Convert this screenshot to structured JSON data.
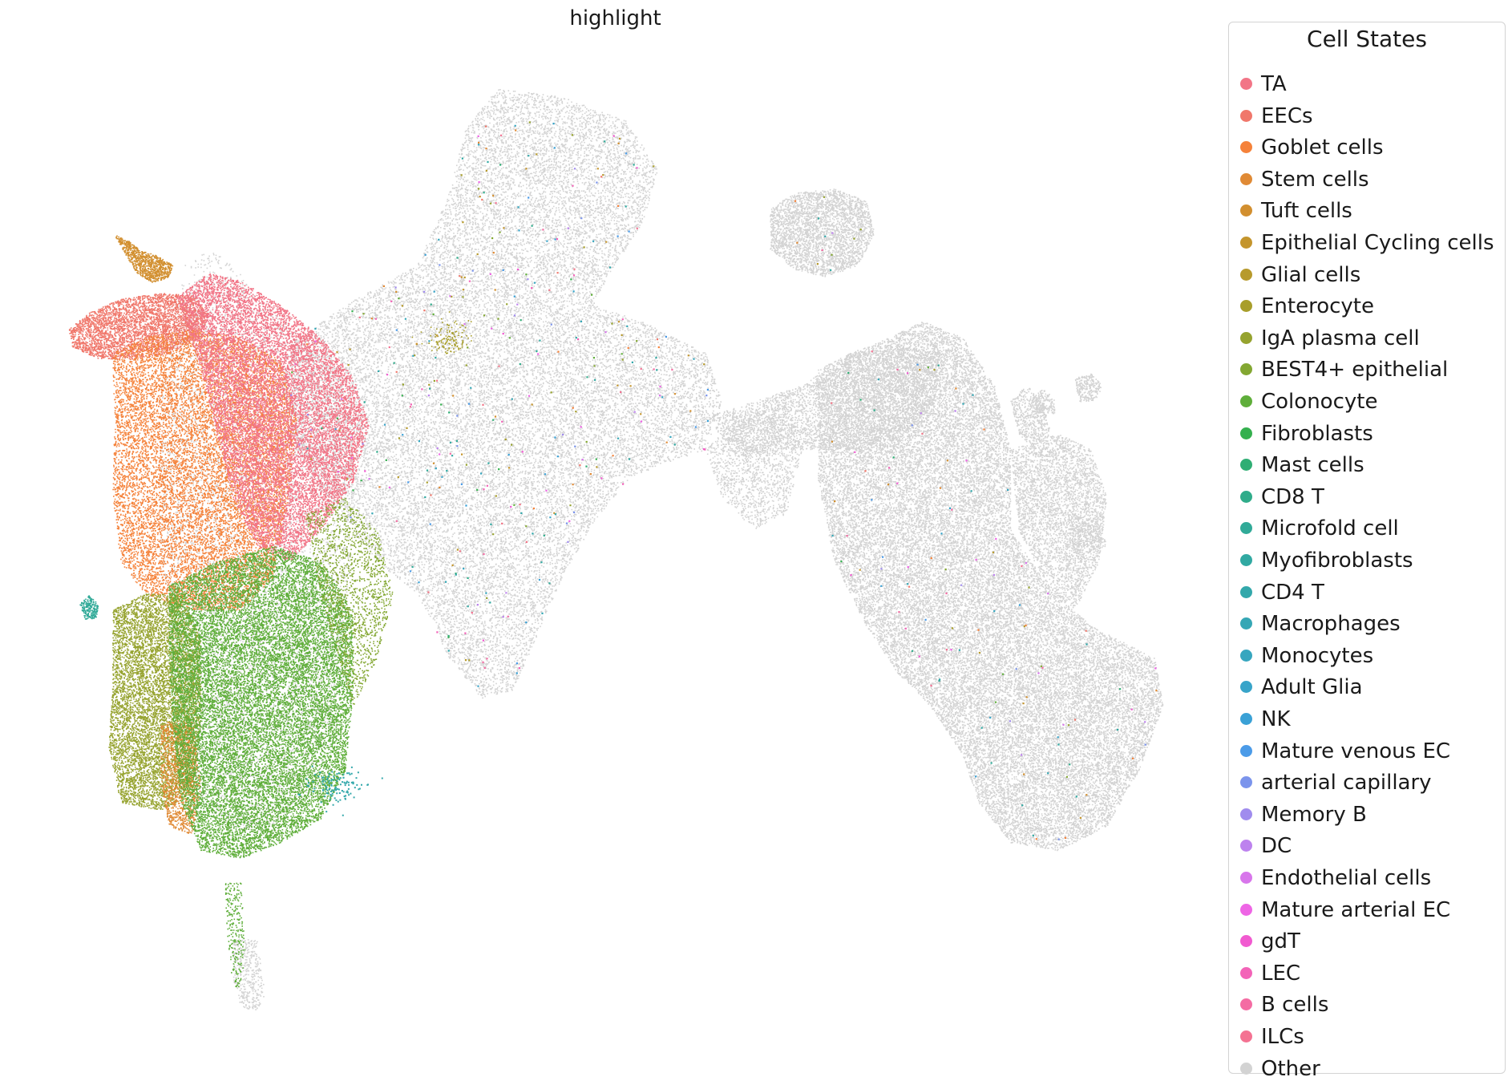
{
  "chart_data": {
    "type": "scatter",
    "title": "highlight",
    "xlabel": "",
    "ylabel": "",
    "axes_visible": false,
    "legend": {
      "title": "Cell States",
      "placement": "right-outside",
      "entries": [
        {
          "label": "TA",
          "color": "#f27587"
        },
        {
          "label": "EECs",
          "color": "#f0776b"
        },
        {
          "label": "Goblet cells",
          "color": "#f5823a"
        },
        {
          "label": "Stem cells",
          "color": "#e08a35"
        },
        {
          "label": "Tuft cells",
          "color": "#d28f2f"
        },
        {
          "label": "Epithelial Cycling cells",
          "color": "#c4952d"
        },
        {
          "label": "Glial cells",
          "color": "#b79a2c"
        },
        {
          "label": "Enterocyte",
          "color": "#a89e2b"
        },
        {
          "label": "IgA plasma cell",
          "color": "#96a32f"
        },
        {
          "label": "BEST4+ epithelial",
          "color": "#83a732"
        },
        {
          "label": "Colonocyte",
          "color": "#5fae3a"
        },
        {
          "label": "Fibroblasts",
          "color": "#34b04e"
        },
        {
          "label": "Mast cells",
          "color": "#2fae74"
        },
        {
          "label": "CD8 T",
          "color": "#2fac8a"
        },
        {
          "label": "Microfold cell",
          "color": "#31aa98"
        },
        {
          "label": "Myofibroblasts",
          "color": "#31a9a2"
        },
        {
          "label": "CD4 T",
          "color": "#33a8ab"
        },
        {
          "label": "Macrophages",
          "color": "#35a7b5"
        },
        {
          "label": "Monocytes",
          "color": "#36a6bf"
        },
        {
          "label": "Adult Glia",
          "color": "#38a4c9"
        },
        {
          "label": "NK",
          "color": "#3aa1d6"
        },
        {
          "label": "Mature venous EC",
          "color": "#4b9be8"
        },
        {
          "label": "arterial capillary",
          "color": "#7b94ec"
        },
        {
          "label": "Memory B",
          "color": "#a08cee"
        },
        {
          "label": "DC",
          "color": "#bd82ee"
        },
        {
          "label": "Endothelial cells",
          "color": "#d876eb"
        },
        {
          "label": "Mature arterial EC",
          "color": "#ee65e5"
        },
        {
          "label": "gdT",
          "color": "#f15ad0"
        },
        {
          "label": "LEC",
          "color": "#f363b8"
        },
        {
          "label": "B cells",
          "color": "#f46ca3"
        },
        {
          "label": "ILCs",
          "color": "#f47292"
        },
        {
          "label": "Other",
          "color": "#d3d3d3"
        }
      ]
    }
  }
}
